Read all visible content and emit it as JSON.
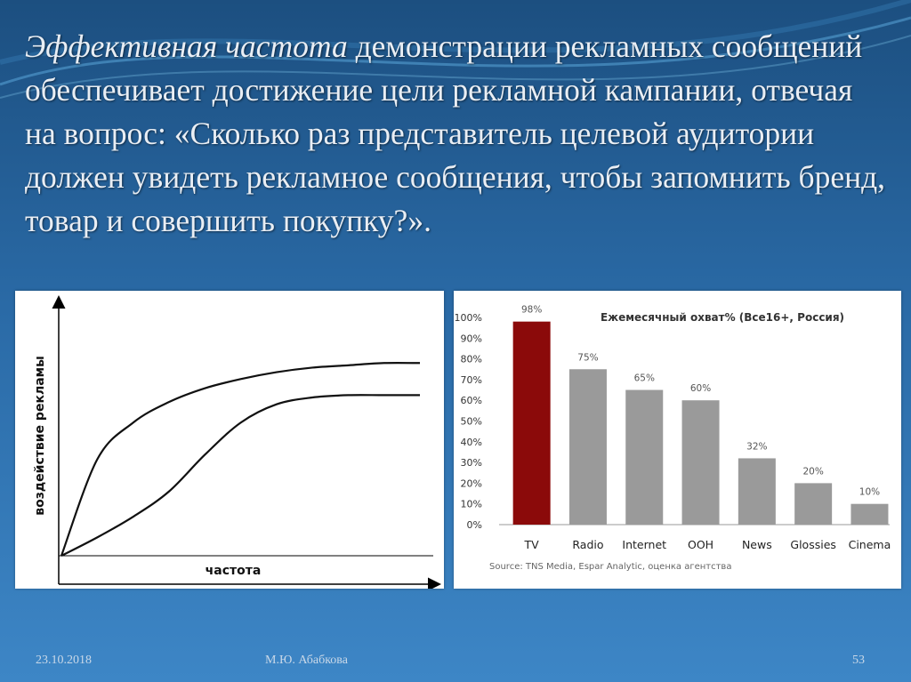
{
  "slide": {
    "text_italic": "Эффективная частота",
    "text_rest": " демонстрации рекламных сообщений обеспечивает достижение цели рекламной кампании, отвечая на вопрос: «Сколько раз представитель целевой аудитории должен увидеть рекламное сообщения, чтобы запомнить бренд, товар и совершить покупку?».",
    "footer_date": "23.10.2018",
    "footer_author": "М.Ю. Абабкова",
    "footer_page": "53"
  },
  "chart_data": [
    {
      "type": "line",
      "xlabel": "частота",
      "ylabel": "воздействие рекламы",
      "grid": false,
      "series": [
        {
          "x": [
            0,
            1,
            2,
            3,
            4,
            5,
            6,
            7,
            8,
            9,
            10
          ],
          "y": [
            0,
            42,
            58,
            67,
            73,
            77,
            80,
            82,
            83,
            84,
            84
          ]
        },
        {
          "x": [
            0,
            1,
            2,
            3,
            4,
            5,
            6,
            7,
            8,
            9,
            10
          ],
          "y": [
            0,
            8,
            17,
            28,
            44,
            58,
            66,
            69,
            70,
            70,
            70
          ]
        }
      ]
    },
    {
      "type": "bar",
      "title": "Ежемесячный охват% (Все16+, Россия)",
      "categories": [
        "TV",
        "Radio",
        "Internet",
        "OOH",
        "News",
        "Glossies",
        "Cinema"
      ],
      "values": [
        98,
        75,
        65,
        60,
        32,
        20,
        10
      ],
      "value_labels": [
        "98%",
        "75%",
        "65%",
        "60%",
        "32%",
        "20%",
        "10%"
      ],
      "y_ticks": [
        "0%",
        "10%",
        "20%",
        "30%",
        "40%",
        "50%",
        "60%",
        "70%",
        "80%",
        "90%",
        "100%"
      ],
      "ylim": [
        0,
        100
      ],
      "source": "Source: TNS Media, Espar Analytic, оценка агентства",
      "colors": {
        "highlight": "#8b0a0a",
        "default": "#9a9a9a"
      },
      "highlight_index": 0
    }
  ]
}
